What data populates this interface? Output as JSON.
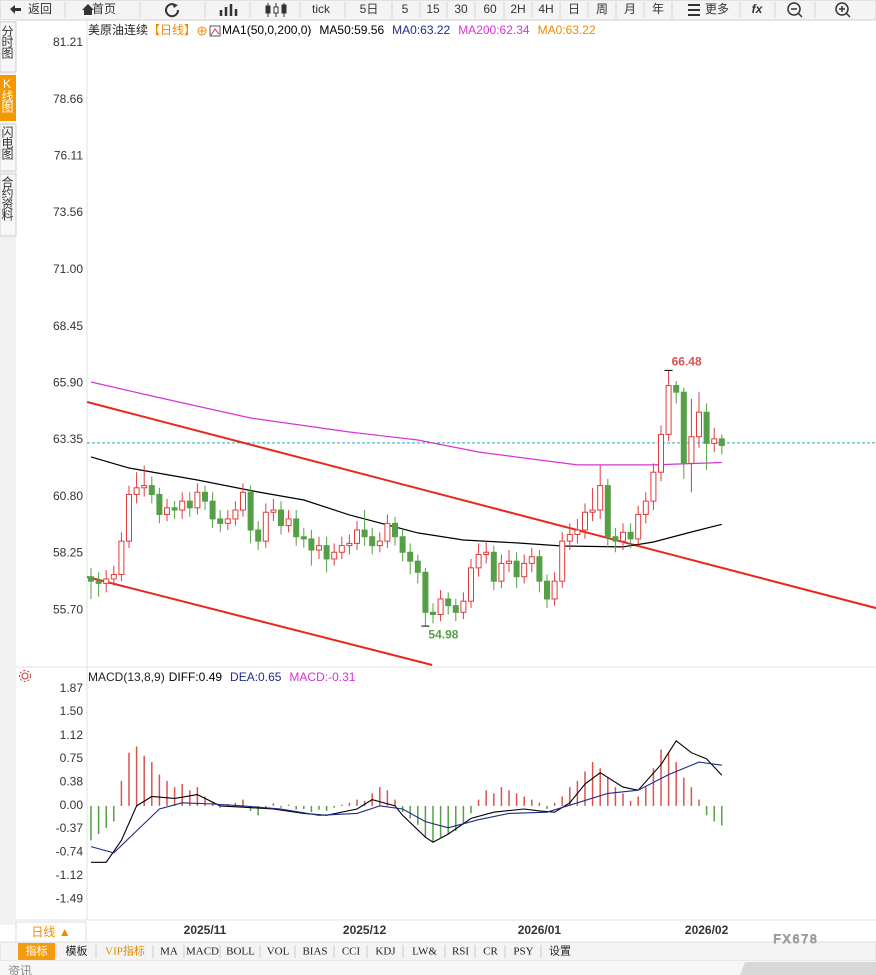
{
  "toolbar": {
    "items": [
      "返回",
      "首页",
      "tick",
      "5日",
      "5",
      "15",
      "30",
      "60",
      "2H",
      "4H",
      "日",
      "周",
      "月",
      "年",
      "更多"
    ]
  },
  "sidebar": {
    "tabs": [
      "分时图",
      "K线图",
      "闪电图",
      "合约资料"
    ]
  },
  "chart_data": [
    {
      "type": "candlestick",
      "title": "美原油连续",
      "period": "【日线】",
      "legend_items": [
        {
          "text": "MA1(50,0,200,0)",
          "color": "#000000"
        },
        {
          "text": "MA50:59.56",
          "color": "#000000"
        },
        {
          "text": "MA0:63.22",
          "color": "#1f2a8a"
        },
        {
          "text": "MA200:62.34",
          "color": "#d633d6"
        },
        {
          "text": "MA0:63.22",
          "color": "#f08a00"
        }
      ],
      "categories": [
        null,
        null,
        null,
        null,
        null,
        null,
        null,
        null,
        null,
        null,
        null,
        null,
        null,
        null,
        null,
        "2025/11",
        null,
        null,
        null,
        null,
        null,
        null,
        null,
        null,
        null,
        null,
        null,
        null,
        null,
        null,
        null,
        null,
        null,
        null,
        null,
        null,
        "2025/12",
        null,
        null,
        null,
        null,
        null,
        null,
        null,
        null,
        null,
        null,
        null,
        null,
        null,
        null,
        null,
        null,
        null,
        null,
        null,
        null,
        null,
        null,
        "2026/01",
        null,
        null,
        null,
        null,
        null,
        null,
        null,
        null,
        null,
        null,
        null,
        null,
        null,
        null,
        null,
        null,
        null,
        null,
        null,
        null,
        null,
        "2026/02",
        null,
        null
      ],
      "open": [
        57.2,
        57.0,
        56.9,
        57.1,
        57.3,
        58.8,
        60.9,
        61.2,
        61.3,
        60.9,
        60.0,
        60.3,
        60.2,
        60.6,
        60.3,
        61.0,
        60.6,
        59.8,
        59.6,
        59.8,
        60.2,
        61.0,
        59.3,
        58.8,
        60.1,
        60.2,
        59.5,
        59.8,
        59.0,
        58.9,
        58.4,
        58.6,
        58.0,
        58.3,
        58.6,
        58.7,
        59.3,
        59.0,
        58.6,
        58.8,
        59.6,
        59.0,
        58.3,
        57.9,
        57.4,
        55.6,
        55.5,
        56.2,
        55.9,
        55.6,
        56.1,
        57.6,
        58.2,
        58.3,
        57.0,
        57.8,
        57.9,
        57.2,
        57.8,
        58.1,
        57.0,
        56.2,
        57.0,
        58.8,
        59.1,
        59.3,
        60.1,
        60.2,
        61.3,
        59.0,
        58.8,
        59.2,
        58.9,
        60.0,
        60.6,
        61.9,
        63.6,
        65.8,
        65.5,
        62.3,
        63.5,
        64.6,
        63.2,
        63.4
      ],
      "high": [
        57.6,
        57.4,
        57.5,
        57.7,
        59.2,
        61.3,
        61.9,
        62.2,
        61.7,
        61.2,
        60.7,
        60.6,
        61.0,
        61.0,
        61.4,
        61.3,
        61.0,
        60.2,
        60.2,
        60.6,
        61.4,
        61.3,
        59.7,
        60.5,
        60.7,
        60.6,
        60.2,
        60.2,
        59.4,
        59.3,
        59.0,
        59.0,
        58.7,
        59.0,
        59.1,
        59.7,
        60.2,
        59.4,
        59.2,
        60.0,
        59.9,
        59.3,
        58.7,
        58.2,
        57.6,
        56.0,
        56.6,
        56.5,
        56.2,
        56.5,
        58.0,
        58.7,
        58.8,
        58.6,
        58.2,
        58.4,
        58.3,
        58.2,
        58.5,
        58.4,
        57.3,
        57.4,
        59.2,
        59.6,
        59.8,
        60.5,
        61.2,
        62.2,
        61.6,
        59.4,
        59.6,
        59.6,
        60.4,
        61.0,
        62.3,
        64.0,
        66.48,
        66.0,
        65.7,
        65.2,
        65.5,
        65.0,
        63.9,
        63.6
      ],
      "low": [
        56.2,
        56.3,
        56.5,
        56.8,
        57.0,
        58.5,
        60.5,
        60.8,
        60.5,
        59.6,
        59.7,
        59.8,
        59.8,
        59.9,
        60.0,
        60.2,
        59.4,
        59.2,
        59.3,
        59.5,
        59.9,
        58.7,
        58.4,
        58.5,
        59.7,
        59.1,
        59.2,
        58.6,
        58.5,
        57.7,
        58.0,
        57.4,
        57.7,
        58.0,
        58.2,
        58.4,
        58.6,
        58.2,
        58.3,
        58.5,
        58.6,
        57.9,
        57.3,
        56.9,
        54.98,
        55.1,
        55.2,
        55.5,
        55.2,
        55.3,
        55.8,
        57.2,
        57.8,
        56.6,
        56.7,
        57.4,
        56.7,
        56.9,
        57.4,
        56.5,
        55.8,
        55.9,
        56.7,
        58.4,
        58.7,
        58.9,
        59.7,
        59.8,
        58.5,
        58.3,
        58.4,
        58.5,
        58.6,
        59.6,
        60.2,
        61.5,
        63.3,
        65.0,
        61.6,
        61.0,
        63.0,
        62.0,
        62.8,
        62.7
      ],
      "close": [
        57.0,
        56.9,
        57.1,
        57.3,
        58.8,
        60.9,
        61.2,
        61.3,
        60.9,
        60.0,
        60.3,
        60.2,
        60.6,
        60.3,
        61.0,
        60.6,
        59.8,
        59.6,
        59.8,
        60.2,
        61.0,
        59.3,
        58.8,
        60.1,
        60.2,
        59.5,
        59.8,
        59.0,
        58.9,
        58.4,
        58.6,
        58.0,
        58.3,
        58.6,
        58.7,
        59.3,
        59.0,
        58.6,
        58.8,
        59.6,
        59.0,
        58.3,
        57.9,
        57.4,
        55.6,
        55.5,
        56.2,
        55.9,
        55.6,
        56.1,
        57.6,
        58.2,
        58.3,
        57.0,
        57.8,
        57.9,
        57.2,
        57.8,
        58.1,
        57.0,
        56.2,
        57.0,
        58.8,
        59.1,
        59.3,
        60.1,
        60.2,
        61.3,
        59.0,
        58.8,
        59.2,
        58.9,
        60.0,
        60.6,
        61.9,
        63.6,
        65.8,
        65.5,
        62.3,
        63.5,
        64.6,
        63.2,
        63.4,
        63.1
      ],
      "up_color": "#e23b3b",
      "down_color": "#55a047",
      "high_label_color": "#d9534f",
      "low_label_color": "#55a047",
      "series": [
        {
          "color": "#000000",
          "x": [
            0,
            5,
            14,
            22,
            28,
            34,
            38,
            43,
            49,
            56,
            62,
            70,
            74,
            79,
            83
          ],
          "values": [
            62.59,
            62.09,
            61.55,
            61.01,
            60.65,
            59.98,
            59.62,
            59.17,
            58.85,
            58.72,
            58.58,
            58.54,
            58.76,
            59.21,
            59.56
          ]
        },
        {
          "color": "#d633d6",
          "x": [
            0,
            8,
            21,
            34,
            43,
            51,
            59,
            64,
            74,
            83
          ],
          "values": [
            65.96,
            65.33,
            64.34,
            63.71,
            63.35,
            62.81,
            62.45,
            62.23,
            62.23,
            62.34
          ]
        }
      ],
      "trendlines": {
        "color": "#e8281e",
        "lines": [
          {
            "x": [
              -0.5,
              103.3
            ],
            "y": [
              65.06,
              55.79
            ]
          },
          {
            "x": [
              -0.5,
              44.9
            ],
            "y": [
              57.19,
              53.23
            ]
          }
        ]
      },
      "price_line": {
        "value": 63.22,
        "color": "#2aa6a6"
      },
      "ylim": [
        53.23,
        82.15
      ],
      "yticks": [
        81.21,
        78.66,
        76.11,
        73.56,
        {
          "value": 71,
          "label": "71.00"
        },
        68.45,
        {
          "value": 65.9,
          "label": "65.90"
        },
        63.35,
        {
          "value": 60.8,
          "label": "60.80"
        },
        58.25,
        {
          "value": 55.7,
          "label": "55.70"
        }
      ],
      "grid": false
    },
    {
      "type": "macd",
      "title": "MACD(13,8,9)",
      "legend_items": [
        {
          "text": "DIFF:0.49",
          "color": "#000000"
        },
        {
          "text": "DEA:0.65",
          "color": "#1f2a8a"
        },
        {
          "text": "MACD:-0.31",
          "color": "#d633d6"
        }
      ],
      "histogram": {
        "up_color": "#d9534f",
        "down_color": "#55a047",
        "values": [
          -0.55,
          -0.45,
          -0.35,
          -0.25,
          0.4,
          0.85,
          0.95,
          0.8,
          0.7,
          0.5,
          0.4,
          0.3,
          0.35,
          0.25,
          0.3,
          0.15,
          0.05,
          -0.03,
          0.03,
          0.05,
          0.1,
          -0.08,
          -0.15,
          -0.05,
          0.04,
          -0.03,
          0.02,
          -0.06,
          -0.05,
          -0.1,
          -0.06,
          -0.08,
          -0.03,
          0.02,
          0.05,
          0.1,
          0.08,
          0.2,
          0.3,
          0.25,
          0.1,
          -0.1,
          -0.2,
          -0.3,
          -0.5,
          -0.58,
          -0.5,
          -0.45,
          -0.4,
          -0.3,
          -0.12,
          0.1,
          0.25,
          0.2,
          0.3,
          0.25,
          0.2,
          0.15,
          0.1,
          0.05,
          -0.05,
          0.05,
          0.15,
          0.3,
          0.4,
          0.55,
          0.7,
          0.6,
          0.45,
          0.3,
          0.2,
          0.08,
          0.15,
          0.3,
          0.6,
          0.9,
          0.85,
          0.7,
          0.45,
          0.3,
          0.1,
          -0.15,
          -0.25,
          -0.31
        ]
      },
      "series": [
        {
          "color": "#000000",
          "x": [
            0,
            2,
            4,
            6,
            8,
            11,
            14,
            17,
            20,
            24,
            28,
            31,
            35,
            37,
            40,
            41,
            44,
            45,
            47,
            50,
            53,
            57,
            59,
            61,
            63,
            65,
            67,
            70,
            72,
            75,
            77,
            79,
            81,
            83
          ],
          "values": [
            -0.9,
            -0.9,
            -0.55,
            0,
            0.15,
            0.12,
            0.18,
            0,
            -0.02,
            -0.05,
            -0.12,
            -0.15,
            -0.05,
            0.1,
            0,
            -0.15,
            -0.5,
            -0.58,
            -0.45,
            -0.2,
            -0.1,
            -0.05,
            -0.08,
            -0.1,
            0.05,
            0.35,
            0.53,
            0.3,
            0.25,
            0.66,
            1.04,
            0.85,
            0.75,
            0.49
          ]
        },
        {
          "color": "#1f2a8a",
          "x": [
            0,
            3,
            6,
            9,
            12,
            16,
            20,
            25,
            30,
            35,
            38,
            41,
            44,
            47,
            51,
            55,
            60,
            64,
            68,
            72,
            76,
            80,
            83
          ],
          "values": [
            -0.65,
            -0.75,
            -0.4,
            -0.05,
            0.05,
            0.03,
            0,
            -0.05,
            -0.15,
            -0.12,
            0,
            -0.05,
            -0.25,
            -0.35,
            -0.22,
            -0.12,
            -0.1,
            0.05,
            0.2,
            0.25,
            0.5,
            0.7,
            0.65
          ]
        }
      ],
      "ylim": [
        -1.79,
        2.17
      ],
      "yticks": [
        1.87,
        {
          "value": 1.5,
          "label": "1.50"
        },
        1.12,
        0.75,
        0.38,
        {
          "value": 0,
          "label": "0.00"
        },
        -0.37,
        -0.74,
        -1.12,
        -1.49
      ],
      "grid": false
    }
  ],
  "footer": {
    "period_selector": "日线 ▲",
    "indicator_tabs": [
      "指标",
      "模板",
      "VIP指标",
      "MA",
      "MACD",
      "BOLL",
      "VOL",
      "BIAS",
      "CCI",
      "KDJ",
      "LW&",
      "RSI",
      "CR",
      "PSY",
      "设置"
    ],
    "watermark": "FX678",
    "news_tab": "资讯"
  }
}
